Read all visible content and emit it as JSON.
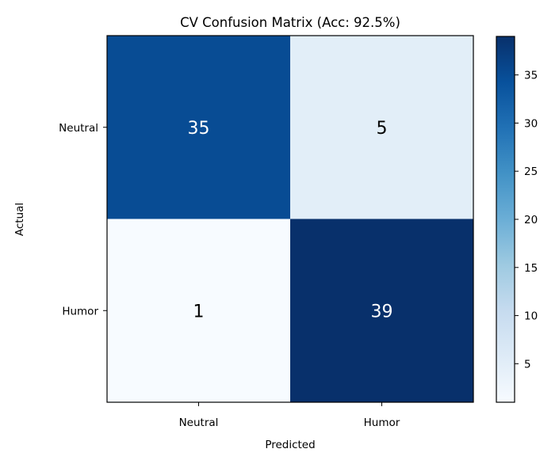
{
  "chart_data": {
    "type": "heatmap",
    "title": "CV Confusion Matrix (Acc: 92.5%)",
    "xlabel": "Predicted",
    "ylabel": "Actual",
    "x_categories": [
      "Neutral",
      "Humor"
    ],
    "y_categories": [
      "Neutral",
      "Humor"
    ],
    "values": [
      [
        35,
        5
      ],
      [
        1,
        39
      ]
    ],
    "colormap": "Blues",
    "colorbar": {
      "range": [
        1,
        39
      ],
      "ticks": [
        5,
        10,
        15,
        20,
        25,
        30,
        35
      ],
      "tick_labels": [
        "5",
        "10",
        "15",
        "20",
        "25",
        "30",
        "35"
      ]
    },
    "grid": false,
    "legend": "none"
  }
}
